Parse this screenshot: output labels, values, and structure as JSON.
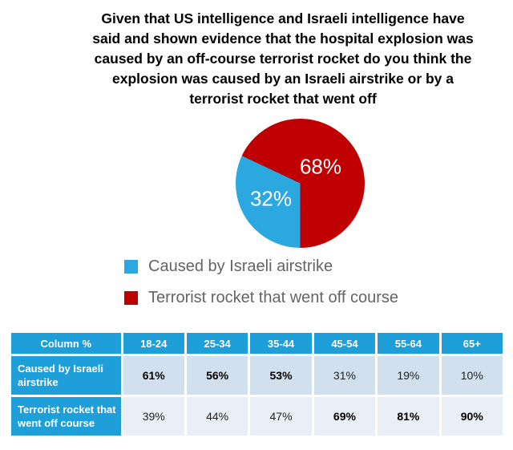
{
  "title": {
    "lines": [
      "Given that US intelligence and Israeli intelligence have",
      "said and shown evidence that the hospital explosion was",
      "caused by an off-course terrorist rocket do you think the",
      "explosion was caused by an Israeli airstrike or by a",
      "terrorist rocket that went off"
    ]
  },
  "pie": {
    "slice_labels": [
      "32%",
      "68%"
    ]
  },
  "legend": {
    "items": [
      {
        "label": "Caused by Israeli airstrike",
        "color": "#2BA8DF"
      },
      {
        "label": "Terrorist rocket that went off course",
        "color": "#C00000"
      }
    ]
  },
  "table": {
    "header": [
      "Column %",
      "18-24",
      "25-34",
      "35-44",
      "45-54",
      "55-64",
      "65+"
    ],
    "rows": [
      {
        "label": "Caused by Israeli airstrike",
        "label_lines": [
          "Caused by Israeli",
          "airstrike"
        ],
        "values": [
          "61%",
          "56%",
          "53%",
          "31%",
          "19%",
          "10%"
        ],
        "bold": [
          true,
          true,
          true,
          false,
          false,
          false
        ]
      },
      {
        "label": "Terrorist rocket that went off course",
        "label_lines": [
          "Terrorist rocket that",
          "went off course"
        ],
        "values": [
          "39%",
          "44%",
          "47%",
          "69%",
          "81%",
          "90%"
        ],
        "bold": [
          false,
          false,
          false,
          true,
          true,
          true
        ]
      }
    ]
  },
  "chart_data": {
    "type": "pie",
    "title": "Given that US intelligence and Israeli intelligence have said and shown evidence that the hospital explosion was caused by an off-course terrorist rocket do you think the explosion was caused by an Israeli airstrike or by a terrorist rocket that went off",
    "categories": [
      "Caused by Israeli airstrike",
      "Terrorist rocket that went off course"
    ],
    "values": [
      32,
      68
    ],
    "data_labels": [
      "32%",
      "68%"
    ],
    "colors": [
      "#2BA8DF",
      "#C00000"
    ],
    "start_angle_deg": 180,
    "legend_position": "bottom",
    "breakdown_table": {
      "unit": "%",
      "columns": [
        "18-24",
        "25-34",
        "35-44",
        "45-54",
        "55-64",
        "65+"
      ],
      "series": [
        {
          "name": "Caused by Israeli airstrike",
          "values": [
            61,
            56,
            53,
            31,
            19,
            10
          ]
        },
        {
          "name": "Terrorist rocket that went off course",
          "values": [
            39,
            44,
            47,
            69,
            81,
            90
          ]
        }
      ]
    }
  }
}
